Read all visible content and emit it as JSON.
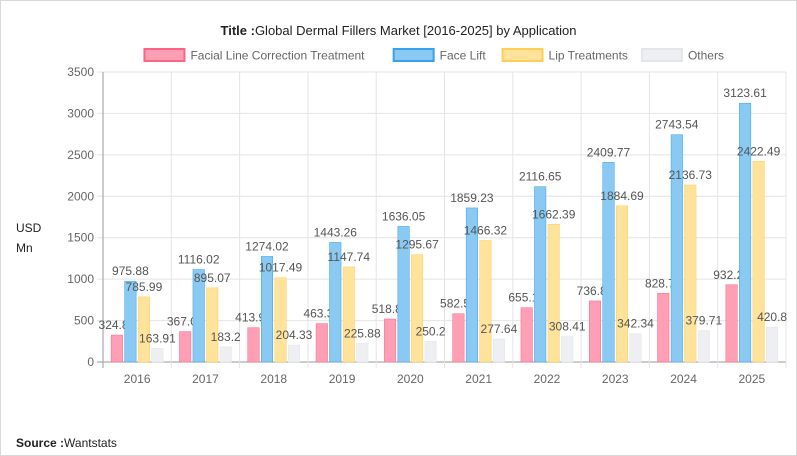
{
  "title": {
    "prefix": "Title :",
    "text": "Global Dermal Fillers Market [2016-2025] by Application"
  },
  "source": {
    "prefix": "Source :",
    "text": "Wantstats"
  },
  "chart_data": {
    "type": "bar",
    "title": "Global Dermal Fillers Market [2016-2025] by Application",
    "ylabel_lines": [
      "USD",
      "Mn"
    ],
    "xlabel": "",
    "ylim": [
      0,
      3500
    ],
    "yticks": [
      0,
      500,
      1000,
      1500,
      2000,
      2500,
      3000,
      3500
    ],
    "grid": true,
    "legend_position": "top",
    "categories": [
      "2016",
      "2017",
      "2018",
      "2019",
      "2020",
      "2021",
      "2022",
      "2023",
      "2024",
      "2025"
    ],
    "series": [
      {
        "name": "Facial Line Correction Treatment",
        "color": "#ff9fb5",
        "border": "#ff6384",
        "values": [
          324.82,
          367.02,
          413.96,
          463.36,
          518.88,
          582.51,
          655.13,
          736.85,
          828.79,
          932.26
        ]
      },
      {
        "name": "Face Lift",
        "color": "#8ac9f2",
        "border": "#36a2eb",
        "values": [
          975.88,
          1116.02,
          1274.02,
          1443.26,
          1636.05,
          1859.23,
          2116.65,
          2409.77,
          2743.54,
          3123.61
        ]
      },
      {
        "name": "Lip Treatments",
        "color": "#ffe39b",
        "border": "#ffce56",
        "values": [
          785.99,
          895.07,
          1017.49,
          1147.74,
          1295.67,
          1466.32,
          1662.39,
          1884.69,
          2136.73,
          2422.49
        ]
      },
      {
        "name": "Others",
        "color": "#eeeff3",
        "border": "#e4e5e9",
        "values": [
          163.91,
          183.2,
          204.33,
          225.88,
          250.2,
          277.64,
          308.41,
          342.34,
          379.71,
          420.8
        ]
      }
    ]
  }
}
